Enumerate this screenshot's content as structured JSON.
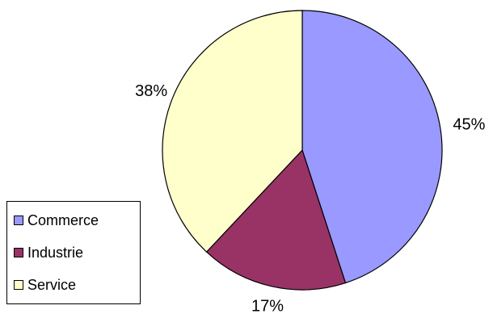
{
  "chart_data": {
    "type": "pie",
    "categories": [
      "Commerce",
      "Industrie",
      "Service"
    ],
    "values": [
      45,
      17,
      38
    ],
    "labels": [
      "45%",
      "17%",
      "38%"
    ],
    "colors": [
      "#9999ff",
      "#993366",
      "#ffffcc"
    ],
    "start_angle_deg": 0,
    "direction": "clockwise",
    "legend_position": "left",
    "legend": {
      "items": [
        {
          "label": "Commerce",
          "color": "#9999ff"
        },
        {
          "label": "Industrie",
          "color": "#993366"
        },
        {
          "label": "Service",
          "color": "#ffffcc"
        }
      ]
    }
  }
}
